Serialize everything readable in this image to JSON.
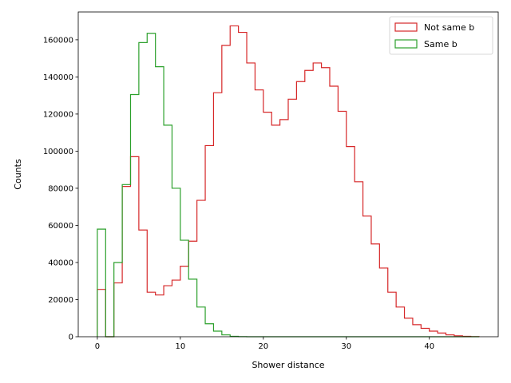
{
  "chart_data": {
    "type": "histogram",
    "xlabel": "Shower distance",
    "ylabel": "Counts",
    "xlim": [
      -2.3,
      48.3
    ],
    "ylim": [
      0,
      175000
    ],
    "x_ticks": [
      0,
      10,
      20,
      30,
      40
    ],
    "y_ticks": [
      0,
      20000,
      40000,
      60000,
      80000,
      100000,
      120000,
      140000,
      160000
    ],
    "bin_edges": [
      0,
      1,
      2,
      3,
      4,
      5,
      6,
      7,
      8,
      9,
      10,
      11,
      12,
      13,
      14,
      15,
      16,
      17,
      18,
      19,
      20,
      21,
      22,
      23,
      24,
      25,
      26,
      27,
      28,
      29,
      30,
      31,
      32,
      33,
      34,
      35,
      36,
      37,
      38,
      39,
      40,
      41,
      42,
      43,
      44,
      45,
      46
    ],
    "legend_position": "upper right",
    "series": [
      {
        "name": "Not same b",
        "color": "#d62728",
        "values": [
          25500,
          0,
          29000,
          81000,
          97000,
          57500,
          24000,
          22500,
          27500,
          30500,
          38000,
          51500,
          73500,
          103000,
          131500,
          157000,
          167500,
          164000,
          147500,
          133000,
          121000,
          114000,
          117000,
          128000,
          137500,
          143500,
          147500,
          145000,
          135000,
          121500,
          102500,
          83500,
          65000,
          50000,
          37000,
          24000,
          16000,
          10000,
          6500,
          4500,
          3000,
          2000,
          1000,
          500,
          200,
          50
        ],
        "legend_label": "Not same b"
      },
      {
        "name": "Same b",
        "color": "#2ca02c",
        "values": [
          58000,
          0,
          40000,
          82000,
          130500,
          158500,
          163500,
          145500,
          114000,
          80000,
          52000,
          31000,
          16000,
          7000,
          3000,
          1000,
          200,
          50,
          0,
          0,
          0,
          0,
          0,
          0,
          0,
          0,
          0,
          0,
          0,
          0,
          0,
          0,
          0,
          0,
          0,
          0,
          0,
          0,
          0,
          0,
          0,
          0,
          0,
          0,
          0,
          0
        ],
        "legend_label": "Same b"
      }
    ]
  }
}
